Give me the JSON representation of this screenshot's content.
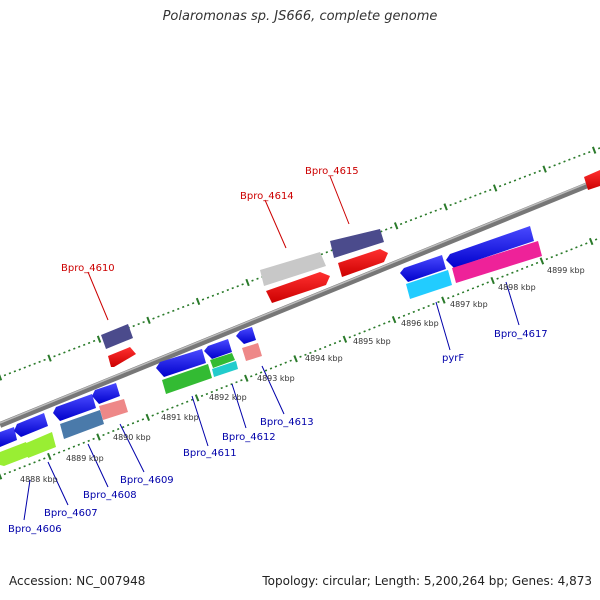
{
  "title": "Polaromonas sp. JS666, complete genome",
  "accession": "Accession: NC_007948",
  "summary": "Topology: circular; Length: 5,200,264 bp; Genes: 4,873",
  "kbp_labels": [
    "4888 kbp",
    "4889 kbp",
    "4890 kbp",
    "4891 kbp",
    "4892 kbp",
    "4893 kbp",
    "4894 kbp",
    "4895 kbp",
    "4896 kbp",
    "4897 kbp",
    "4898 kbp",
    "4899 kbp"
  ],
  "top_gene_labels": [
    "Bpro_4610",
    "Bpro_4614",
    "Bpro_4615"
  ],
  "bottom_gene_labels": [
    "Bpro_4606",
    "Bpro_4607",
    "Bpro_4608",
    "Bpro_4609",
    "Bpro_4611",
    "Bpro_4612",
    "Bpro_4613",
    "pyrF",
    "Bpro_4617"
  ],
  "colors": {
    "forward_label": "#cc0000",
    "reverse_label": "#0000aa",
    "tick": "#2a7a2a",
    "backbone": "#888888"
  }
}
